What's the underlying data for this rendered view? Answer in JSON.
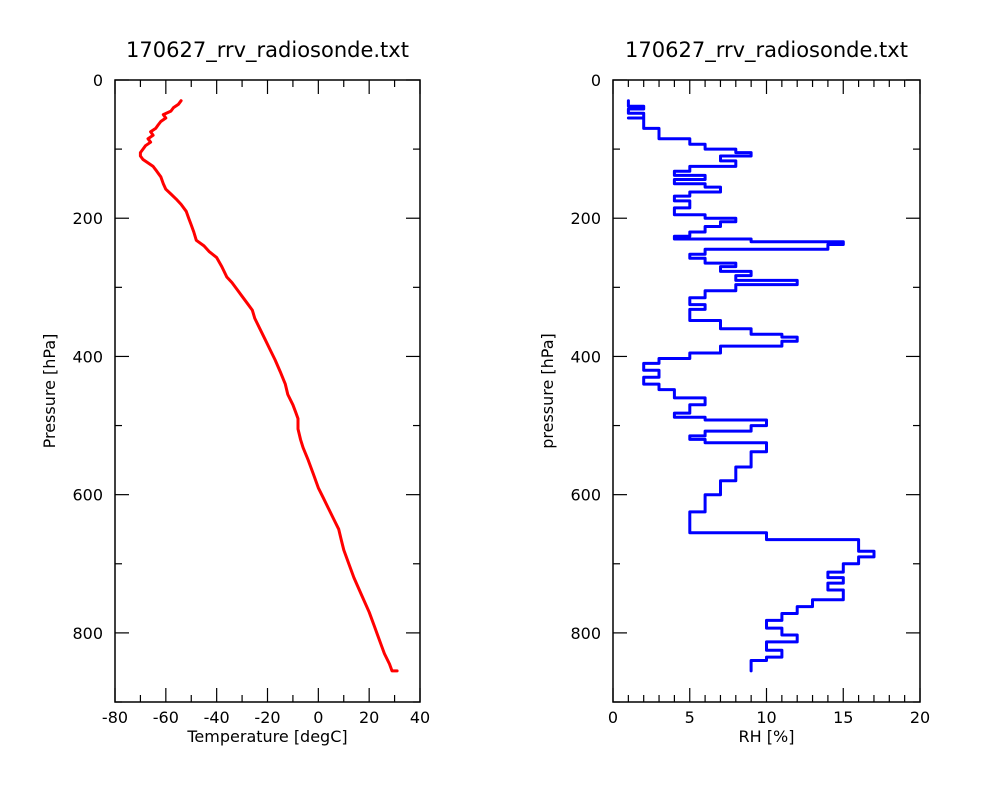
{
  "chart_data": [
    {
      "type": "line",
      "title": "170627_rrv_radiosonde.txt",
      "xlabel": "Temperature [degC]",
      "ylabel": "Pressure [hPa]",
      "xlim": [
        -80,
        40
      ],
      "ylim": [
        900,
        0
      ],
      "y_inverted": true,
      "xticks": [
        "-80",
        "-60",
        "-40",
        "-20",
        "0",
        "20",
        "40"
      ],
      "yticks": [
        "0",
        "200",
        "400",
        "600",
        "800"
      ],
      "series": [
        {
          "color": "#ff0000",
          "points": [
            [
              -54,
              30
            ],
            [
              -55,
              35
            ],
            [
              -57,
              40
            ],
            [
              -58,
              45
            ],
            [
              -61,
              50
            ],
            [
              -60,
              55
            ],
            [
              -62,
              60
            ],
            [
              -63,
              65
            ],
            [
              -64,
              70
            ],
            [
              -66,
              75
            ],
            [
              -65,
              80
            ],
            [
              -67,
              85
            ],
            [
              -66,
              90
            ],
            [
              -68,
              95
            ],
            [
              -69,
              100
            ],
            [
              -70,
              105
            ],
            [
              -70,
              110
            ],
            [
              -69,
              115
            ],
            [
              -67,
              120
            ],
            [
              -65,
              125
            ],
            [
              -64,
              130
            ],
            [
              -63,
              135
            ],
            [
              -62,
              140
            ],
            [
              -61,
              150
            ],
            [
              -60,
              158
            ],
            [
              -58,
              165
            ],
            [
              -56,
              172
            ],
            [
              -54,
              180
            ],
            [
              -52,
              190
            ],
            [
              -51,
              200
            ],
            [
              -50,
              210
            ],
            [
              -49,
              220
            ],
            [
              -48,
              232
            ],
            [
              -45,
              240
            ],
            [
              -43,
              248
            ],
            [
              -40,
              257
            ],
            [
              -38,
              270
            ],
            [
              -36,
              285
            ],
            [
              -34,
              293
            ],
            [
              -32,
              303
            ],
            [
              -30,
              313
            ],
            [
              -28,
              323
            ],
            [
              -26,
              333
            ],
            [
              -25,
              345
            ],
            [
              -23,
              360
            ],
            [
              -21,
              375
            ],
            [
              -19,
              390
            ],
            [
              -17,
              405
            ],
            [
              -15,
              422
            ],
            [
              -13,
              440
            ],
            [
              -12,
              455
            ],
            [
              -10,
              470
            ],
            [
              -9,
              480
            ],
            [
              -8,
              490
            ],
            [
              -8,
              505
            ],
            [
              -7,
              520
            ],
            [
              -6,
              532
            ],
            [
              -4,
              550
            ],
            [
              -2,
              570
            ],
            [
              0,
              590
            ],
            [
              2,
              605
            ],
            [
              4,
              620
            ],
            [
              6,
              635
            ],
            [
              8,
              650
            ],
            [
              9,
              665
            ],
            [
              10,
              680
            ],
            [
              12,
              700
            ],
            [
              14,
              720
            ],
            [
              17,
              745
            ],
            [
              20,
              770
            ],
            [
              22,
              790
            ],
            [
              24,
              810
            ],
            [
              26,
              830
            ],
            [
              28,
              845
            ],
            [
              29,
              855
            ],
            [
              31,
              855
            ]
          ]
        }
      ]
    },
    {
      "type": "line",
      "title": "170627_rrv_radiosonde.txt",
      "xlabel": "RH [%]",
      "ylabel": "pressure [hPa]",
      "xlim": [
        0,
        20
      ],
      "ylim": [
        900,
        0
      ],
      "y_inverted": true,
      "xticks": [
        "0",
        "5",
        "10",
        "15",
        "20"
      ],
      "yticks": [
        "0",
        "200",
        "400",
        "600",
        "800"
      ],
      "series": [
        {
          "color": "#0000ff",
          "step": true,
          "points": [
            [
              1,
              30
            ],
            [
              1,
              38
            ],
            [
              2,
              38
            ],
            [
              2,
              42
            ],
            [
              1,
              42
            ],
            [
              1,
              48
            ],
            [
              2,
              48
            ],
            [
              2,
              55
            ],
            [
              1,
              55
            ],
            [
              2,
              55
            ],
            [
              2,
              70
            ],
            [
              3,
              70
            ],
            [
              3,
              85
            ],
            [
              5,
              85
            ],
            [
              5,
              93
            ],
            [
              6,
              93
            ],
            [
              6,
              100
            ],
            [
              8,
              100
            ],
            [
              8,
              105
            ],
            [
              9,
              105
            ],
            [
              9,
              110
            ],
            [
              7,
              110
            ],
            [
              7,
              117
            ],
            [
              8,
              117
            ],
            [
              8,
              125
            ],
            [
              5,
              125
            ],
            [
              5,
              132
            ],
            [
              4,
              132
            ],
            [
              4,
              138
            ],
            [
              6,
              138
            ],
            [
              6,
              144
            ],
            [
              4,
              144
            ],
            [
              4,
              150
            ],
            [
              6,
              150
            ],
            [
              6,
              155
            ],
            [
              7,
              155
            ],
            [
              7,
              162
            ],
            [
              5,
              162
            ],
            [
              5,
              168
            ],
            [
              4,
              168
            ],
            [
              4,
              175
            ],
            [
              5,
              175
            ],
            [
              5,
              185
            ],
            [
              4,
              185
            ],
            [
              4,
              195
            ],
            [
              6,
              195
            ],
            [
              6,
              200
            ],
            [
              8,
              200
            ],
            [
              8,
              205
            ],
            [
              7,
              205
            ],
            [
              7,
              212
            ],
            [
              6,
              212
            ],
            [
              6,
              220
            ],
            [
              5,
              220
            ],
            [
              5,
              226
            ],
            [
              4,
              226
            ],
            [
              4,
              230
            ],
            [
              9,
              230
            ],
            [
              9,
              234
            ],
            [
              15,
              234
            ],
            [
              15,
              238
            ],
            [
              14,
              238
            ],
            [
              14,
              245
            ],
            [
              6,
              245
            ],
            [
              6,
              252
            ],
            [
              5,
              252
            ],
            [
              5,
              258
            ],
            [
              6,
              258
            ],
            [
              6,
              265
            ],
            [
              8,
              265
            ],
            [
              8,
              270
            ],
            [
              7,
              270
            ],
            [
              7,
              277
            ],
            [
              9,
              277
            ],
            [
              9,
              283
            ],
            [
              8,
              283
            ],
            [
              8,
              290
            ],
            [
              12,
              290
            ],
            [
              12,
              296
            ],
            [
              8,
              296
            ],
            [
              8,
              305
            ],
            [
              6,
              305
            ],
            [
              6,
              315
            ],
            [
              5,
              315
            ],
            [
              5,
              325
            ],
            [
              6,
              325
            ],
            [
              6,
              332
            ],
            [
              5,
              332
            ],
            [
              5,
              348
            ],
            [
              7,
              348
            ],
            [
              7,
              360
            ],
            [
              9,
              360
            ],
            [
              9,
              368
            ],
            [
              11,
              368
            ],
            [
              11,
              372
            ],
            [
              12,
              372
            ],
            [
              12,
              378
            ],
            [
              11,
              378
            ],
            [
              11,
              385
            ],
            [
              7,
              385
            ],
            [
              7,
              395
            ],
            [
              5,
              395
            ],
            [
              5,
              403
            ],
            [
              3,
              403
            ],
            [
              3,
              410
            ],
            [
              2,
              410
            ],
            [
              2,
              420
            ],
            [
              3,
              420
            ],
            [
              3,
              430
            ],
            [
              2,
              430
            ],
            [
              2,
              440
            ],
            [
              3,
              440
            ],
            [
              3,
              448
            ],
            [
              4,
              448
            ],
            [
              4,
              460
            ],
            [
              6,
              460
            ],
            [
              6,
              470
            ],
            [
              5,
              470
            ],
            [
              5,
              482
            ],
            [
              4,
              482
            ],
            [
              4,
              488
            ],
            [
              6,
              488
            ],
            [
              6,
              492
            ],
            [
              10,
              492
            ],
            [
              10,
              500
            ],
            [
              9,
              500
            ],
            [
              9,
              508
            ],
            [
              6,
              508
            ],
            [
              6,
              515
            ],
            [
              5,
              515
            ],
            [
              5,
              520
            ],
            [
              6,
              520
            ],
            [
              6,
              525
            ],
            [
              10,
              525
            ],
            [
              10,
              538
            ],
            [
              9,
              538
            ],
            [
              9,
              560
            ],
            [
              8,
              560
            ],
            [
              8,
              580
            ],
            [
              7,
              580
            ],
            [
              7,
              600
            ],
            [
              6,
              600
            ],
            [
              6,
              625
            ],
            [
              5,
              625
            ],
            [
              5,
              655
            ],
            [
              10,
              655
            ],
            [
              10,
              665
            ],
            [
              16,
              665
            ],
            [
              16,
              682
            ],
            [
              17,
              682
            ],
            [
              17,
              690
            ],
            [
              16,
              690
            ],
            [
              16,
              700
            ],
            [
              15,
              700
            ],
            [
              15,
              712
            ],
            [
              14,
              712
            ],
            [
              14,
              720
            ],
            [
              15,
              720
            ],
            [
              15,
              728
            ],
            [
              14,
              728
            ],
            [
              14,
              738
            ],
            [
              15,
              738
            ],
            [
              15,
              752
            ],
            [
              13,
              752
            ],
            [
              13,
              762
            ],
            [
              12,
              762
            ],
            [
              12,
              772
            ],
            [
              11,
              772
            ],
            [
              11,
              782
            ],
            [
              10,
              782
            ],
            [
              10,
              793
            ],
            [
              11,
              793
            ],
            [
              11,
              803
            ],
            [
              12,
              803
            ],
            [
              12,
              813
            ],
            [
              10,
              813
            ],
            [
              10,
              825
            ],
            [
              11,
              825
            ],
            [
              11,
              835
            ],
            [
              10,
              835
            ],
            [
              10,
              840
            ],
            [
              9,
              840
            ],
            [
              9,
              855
            ]
          ]
        }
      ]
    }
  ]
}
